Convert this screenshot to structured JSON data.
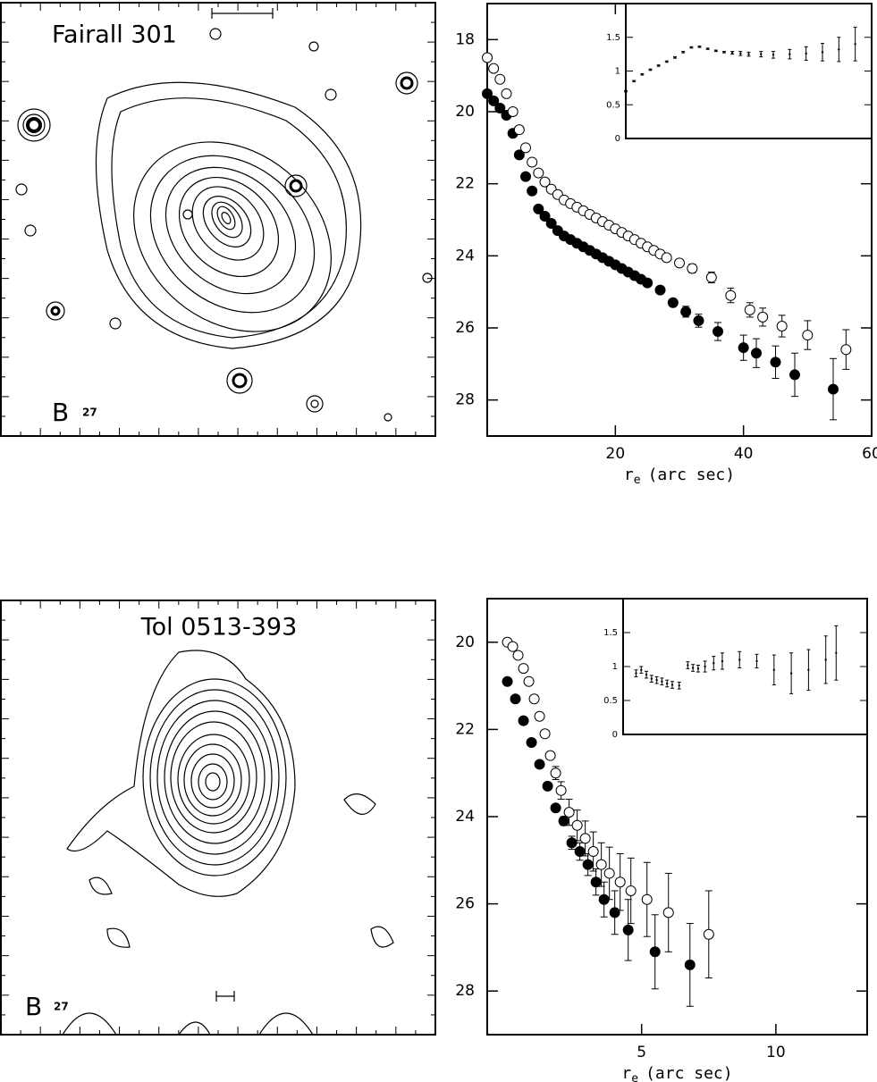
{
  "images": [
    {
      "title": "Fairall 301",
      "band": "B",
      "level": "27"
    },
    {
      "title": "Tol 0513-393",
      "band": "B",
      "level": "27"
    }
  ],
  "chart_data": [
    {
      "type": "scatter",
      "xlabel_symbol": "r",
      "xlabel_subscript": "e",
      "xlabel_unit": "(arc sec)",
      "xlim": [
        0,
        60
      ],
      "xticks": [
        20,
        40,
        60
      ],
      "ylim": [
        29,
        17
      ],
      "yticks": [
        18,
        20,
        22,
        24,
        26,
        28
      ],
      "series": [
        {
          "marker": "filled",
          "x": [
            0,
            1,
            2,
            3,
            4,
            5,
            6,
            7,
            8,
            9,
            10,
            11,
            12,
            13,
            14,
            15,
            16,
            17,
            18,
            19,
            20,
            21,
            22,
            23,
            24,
            25,
            27,
            29,
            31,
            33,
            36,
            40,
            42,
            45,
            48,
            54
          ],
          "y": [
            19.5,
            19.7,
            19.9,
            20.1,
            20.6,
            21.2,
            21.8,
            22.2,
            22.7,
            22.9,
            23.1,
            23.3,
            23.45,
            23.55,
            23.65,
            23.75,
            23.85,
            23.95,
            24.05,
            24.15,
            24.25,
            24.35,
            24.45,
            24.55,
            24.65,
            24.75,
            24.95,
            25.3,
            25.55,
            25.8,
            26.1,
            26.55,
            26.7,
            26.95,
            27.3,
            27.7
          ],
          "errors": [
            null,
            null,
            null,
            null,
            null,
            null,
            null,
            null,
            null,
            null,
            null,
            null,
            null,
            null,
            null,
            null,
            null,
            null,
            null,
            null,
            null,
            null,
            null,
            null,
            null,
            null,
            null,
            0.1,
            0.15,
            0.18,
            0.25,
            0.35,
            0.4,
            0.45,
            0.6,
            0.85
          ]
        },
        {
          "marker": "open",
          "x": [
            0,
            1,
            2,
            3,
            4,
            5,
            6,
            7,
            8,
            9,
            10,
            11,
            12,
            13,
            14,
            15,
            16,
            17,
            18,
            19,
            20,
            21,
            22,
            23,
            24,
            25,
            26,
            27,
            28,
            30,
            32,
            35,
            38,
            41,
            43,
            46,
            50,
            56
          ],
          "y": [
            18.5,
            18.8,
            19.1,
            19.5,
            20.0,
            20.5,
            21.0,
            21.4,
            21.7,
            21.95,
            22.15,
            22.3,
            22.45,
            22.55,
            22.65,
            22.75,
            22.85,
            22.95,
            23.05,
            23.15,
            23.25,
            23.35,
            23.45,
            23.55,
            23.65,
            23.75,
            23.85,
            23.95,
            24.05,
            24.2,
            24.35,
            24.6,
            25.1,
            25.5,
            25.7,
            25.95,
            26.2,
            26.6
          ],
          "errors": [
            null,
            null,
            null,
            null,
            null,
            null,
            null,
            null,
            null,
            null,
            null,
            null,
            null,
            null,
            null,
            null,
            null,
            null,
            null,
            null,
            null,
            null,
            null,
            null,
            null,
            null,
            null,
            null,
            null,
            0.1,
            0.12,
            0.15,
            0.2,
            0.2,
            0.25,
            0.3,
            0.4,
            0.55
          ]
        }
      ],
      "inset": {
        "xlim": [
          0,
          60
        ],
        "ylim": [
          0,
          2
        ],
        "yticks": [
          0,
          0.5,
          1,
          1.5
        ],
        "x": [
          0,
          2,
          4,
          6,
          8,
          10,
          12,
          14,
          16,
          18,
          20,
          22,
          24,
          26,
          28,
          30,
          33,
          36,
          40,
          44,
          48,
          52,
          56
        ],
        "y": [
          0.7,
          0.85,
          0.95,
          1.02,
          1.08,
          1.14,
          1.2,
          1.28,
          1.35,
          1.36,
          1.33,
          1.3,
          1.28,
          1.27,
          1.26,
          1.25,
          1.25,
          1.24,
          1.25,
          1.26,
          1.28,
          1.32,
          1.4
        ],
        "errors": [
          0.01,
          0.01,
          0.01,
          0.01,
          0.01,
          0.01,
          0.01,
          0.01,
          0.01,
          0.01,
          0.01,
          0.01,
          0.01,
          0.02,
          0.03,
          0.03,
          0.04,
          0.05,
          0.07,
          0.1,
          0.13,
          0.18,
          0.25
        ]
      }
    },
    {
      "type": "scatter",
      "xlabel_symbol": "r",
      "xlabel_subscript": "e",
      "xlabel_unit": "(arc sec)",
      "xlim": [
        -0.75,
        13.4
      ],
      "xticks": [
        5,
        10
      ],
      "ylim": [
        29,
        19
      ],
      "yticks": [
        20,
        22,
        24,
        26,
        28
      ],
      "series": [
        {
          "marker": "filled",
          "x": [
            0,
            0.3,
            0.6,
            0.9,
            1.2,
            1.5,
            1.8,
            2.1,
            2.4,
            2.7,
            3.0,
            3.3,
            3.6,
            4.0,
            4.5,
            5.5,
            6.8
          ],
          "y": [
            20.9,
            21.3,
            21.8,
            22.3,
            22.8,
            23.3,
            23.8,
            24.1,
            24.6,
            24.8,
            25.1,
            25.5,
            25.9,
            26.2,
            26.6,
            27.1,
            27.4
          ],
          "errors": [
            null,
            null,
            null,
            null,
            null,
            null,
            null,
            0.1,
            0.15,
            0.2,
            0.25,
            0.3,
            0.4,
            0.5,
            0.7,
            0.85,
            0.95
          ]
        },
        {
          "marker": "open",
          "x": [
            0,
            0.2,
            0.4,
            0.6,
            0.8,
            1.0,
            1.2,
            1.4,
            1.6,
            1.8,
            2.0,
            2.3,
            2.6,
            2.9,
            3.2,
            3.5,
            3.8,
            4.2,
            4.6,
            5.2,
            6.0,
            7.5
          ],
          "y": [
            20.0,
            20.1,
            20.3,
            20.6,
            20.9,
            21.3,
            21.7,
            22.1,
            22.6,
            23.0,
            23.4,
            23.9,
            24.2,
            24.5,
            24.8,
            25.1,
            25.3,
            25.5,
            25.7,
            25.9,
            26.2,
            26.7
          ],
          "errors": [
            null,
            null,
            null,
            null,
            null,
            null,
            null,
            null,
            null,
            0.15,
            0.2,
            0.3,
            0.35,
            0.4,
            0.45,
            0.5,
            0.6,
            0.65,
            0.75,
            0.85,
            0.9,
            1.0
          ]
        }
      ],
      "inset": {
        "xlim": [
          -0.75,
          13.4
        ],
        "ylim": [
          0,
          2
        ],
        "yticks": [
          0,
          0.5,
          1,
          1.5
        ],
        "x": [
          0,
          0.3,
          0.6,
          0.9,
          1.2,
          1.5,
          1.8,
          2.1,
          2.5,
          3.0,
          3.3,
          3.6,
          4.0,
          4.5,
          5.0,
          6.0,
          7.0,
          8.0,
          9.0,
          10.0,
          11.0,
          11.6
        ],
        "y": [
          0.9,
          0.95,
          0.88,
          0.82,
          0.8,
          0.78,
          0.75,
          0.73,
          0.72,
          1.02,
          0.98,
          0.97,
          1.0,
          1.05,
          1.08,
          1.1,
          1.08,
          0.95,
          0.9,
          0.95,
          1.1,
          1.2
        ],
        "errors": [
          0.05,
          0.05,
          0.05,
          0.05,
          0.05,
          0.05,
          0.05,
          0.05,
          0.05,
          0.05,
          0.05,
          0.05,
          0.08,
          0.1,
          0.12,
          0.12,
          0.1,
          0.22,
          0.3,
          0.3,
          0.35,
          0.4
        ]
      }
    }
  ]
}
